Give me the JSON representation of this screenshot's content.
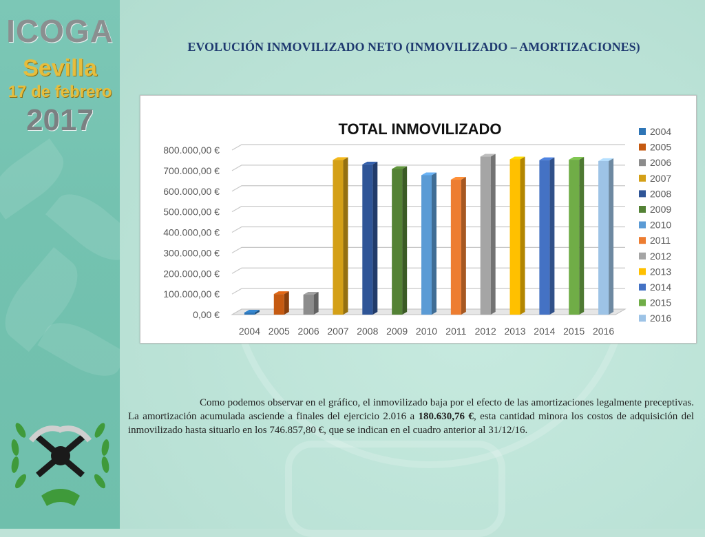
{
  "brand": {
    "line1": "ICOGA",
    "line2": "Sevilla",
    "line3": "17 de febrero",
    "line4": "2017"
  },
  "slide_title": "EVOLUCIÓN INMOVILIZADO NETO (INMOVILIZADO – AMORTIZACIONES)",
  "paragraph": {
    "part1": "Como podemos observar en el gráfico, el inmovilizado baja por el efecto de las amortizaciones legalmente preceptivas. La amortización acumulada asciende a finales del ejercicio 2.016 a ",
    "bold": "180.630,76 €",
    "part2": ", esta cantidad minora los costos de adquisición del inmovilizado hasta situarlo en los 746.857,80 €, que se indican en el cuadro anterior al 31/12/16."
  },
  "colors": {
    "sidebar": "#74c2b0",
    "background": "#bfe3d8",
    "title": "#1f3a70"
  },
  "chart_data": {
    "type": "bar",
    "title": "TOTAL INMOVILIZADO",
    "xlabel": "",
    "ylabel": "",
    "categories": [
      "2004",
      "2005",
      "2006",
      "2007",
      "2008",
      "2009",
      "2010",
      "2011",
      "2012",
      "2013",
      "2014",
      "2015",
      "2016"
    ],
    "values": [
      10000,
      100000,
      97000,
      752000,
      730000,
      708000,
      678000,
      656000,
      768000,
      755000,
      751000,
      753000,
      746857.8
    ],
    "ylim": [
      0,
      800000
    ],
    "yticks": [
      "0,00 €",
      "100.000,00 €",
      "200.000,00 €",
      "300.000,00 €",
      "400.000,00 €",
      "500.000,00 €",
      "600.000,00 €",
      "700.000,00 €",
      "800.000,00 €"
    ],
    "grid": true,
    "legend_position": "right",
    "legend": [
      "2004",
      "2005",
      "2006",
      "2007",
      "2008",
      "2009",
      "2010",
      "2011",
      "2012",
      "2013",
      "2014",
      "2015",
      "2016"
    ],
    "colors": [
      "#2e75b6",
      "#c55a11",
      "#8c8c8c",
      "#d4a017",
      "#2f5597",
      "#548235",
      "#5b9bd5",
      "#ed7d31",
      "#a5a5a5",
      "#ffc000",
      "#4472c4",
      "#70ad47",
      "#9dc3e6"
    ]
  }
}
